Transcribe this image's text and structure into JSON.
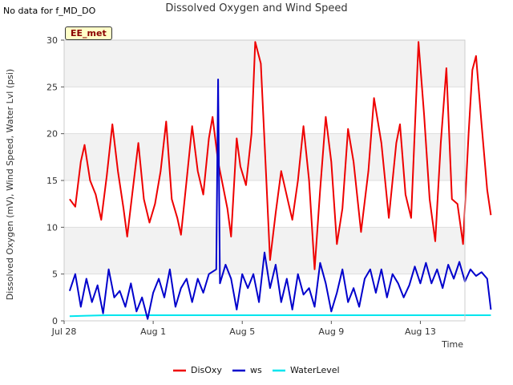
{
  "header": {
    "no_data_note": "No data for f_MD_DO",
    "tag": "EE_met"
  },
  "chart_data": {
    "type": "line",
    "title": "Dissolved Oxygen and Wind Speed",
    "xlabel": "Time",
    "ylabel": "Dissolved Oxygen (mV), Wind Speed, Water Lvl (psi)",
    "xlim": [
      "2024-07-28",
      "2024-08-15"
    ],
    "ylim": [
      0,
      30
    ],
    "xticks": [
      {
        "date": "2024-07-28",
        "label": "Jul 28"
      },
      {
        "date": "2024-08-01",
        "label": "Aug 1"
      },
      {
        "date": "2024-08-05",
        "label": "Aug 5"
      },
      {
        "date": "2024-08-09",
        "label": "Aug 9"
      },
      {
        "date": "2024-08-13",
        "label": "Aug 13"
      }
    ],
    "yticks": [
      0,
      5,
      10,
      15,
      20,
      25,
      30
    ],
    "grid": true,
    "legend_position": "bottom",
    "series": [
      {
        "name": "DisOxy",
        "color": "#ee0000",
        "points": [
          [
            "2024-07-28 06:00",
            13.0
          ],
          [
            "2024-07-28 12:00",
            12.2
          ],
          [
            "2024-07-28 18:00",
            17.0
          ],
          [
            "2024-07-28 22:00",
            18.8
          ],
          [
            "2024-07-29 04:00",
            15.0
          ],
          [
            "2024-07-29 10:00",
            13.5
          ],
          [
            "2024-07-29 16:00",
            10.8
          ],
          [
            "2024-07-29 22:00",
            15.5
          ],
          [
            "2024-07-30 04:00",
            21.0
          ],
          [
            "2024-07-30 10:00",
            16.0
          ],
          [
            "2024-07-30 16:00",
            12.0
          ],
          [
            "2024-07-30 20:00",
            9.0
          ],
          [
            "2024-07-31 02:00",
            14.0
          ],
          [
            "2024-07-31 08:00",
            19.0
          ],
          [
            "2024-07-31 14:00",
            13.0
          ],
          [
            "2024-07-31 20:00",
            10.5
          ],
          [
            "2024-08-01 02:00",
            12.5
          ],
          [
            "2024-08-01 08:00",
            16.0
          ],
          [
            "2024-08-01 14:00",
            21.3
          ],
          [
            "2024-08-01 20:00",
            13.0
          ],
          [
            "2024-08-02 02:00",
            11.0
          ],
          [
            "2024-08-02 06:00",
            9.2
          ],
          [
            "2024-08-02 12:00",
            15.0
          ],
          [
            "2024-08-02 18:00",
            20.8
          ],
          [
            "2024-08-03 00:00",
            16.0
          ],
          [
            "2024-08-03 06:00",
            13.5
          ],
          [
            "2024-08-03 12:00",
            19.5
          ],
          [
            "2024-08-03 16:00",
            21.8
          ],
          [
            "2024-08-03 22:00",
            17.0
          ],
          [
            "2024-08-04 04:00",
            14.0
          ],
          [
            "2024-08-04 08:00",
            12.0
          ],
          [
            "2024-08-04 12:00",
            9.0
          ],
          [
            "2024-08-04 18:00",
            19.5
          ],
          [
            "2024-08-04 22:00",
            16.5
          ],
          [
            "2024-08-05 04:00",
            14.5
          ],
          [
            "2024-08-05 10:00",
            20.0
          ],
          [
            "2024-08-05 14:00",
            29.8
          ],
          [
            "2024-08-05 20:00",
            27.5
          ],
          [
            "2024-08-06 02:00",
            15.0
          ],
          [
            "2024-08-06 06:00",
            6.5
          ],
          [
            "2024-08-06 12:00",
            11.5
          ],
          [
            "2024-08-06 18:00",
            16.0
          ],
          [
            "2024-08-07 02:00",
            12.5
          ],
          [
            "2024-08-07 06:00",
            10.8
          ],
          [
            "2024-08-07 12:00",
            15.0
          ],
          [
            "2024-08-07 18:00",
            20.8
          ],
          [
            "2024-08-08 00:00",
            15.0
          ],
          [
            "2024-08-08 06:00",
            5.5
          ],
          [
            "2024-08-08 12:00",
            14.0
          ],
          [
            "2024-08-08 18:00",
            21.8
          ],
          [
            "2024-08-09 00:00",
            17.0
          ],
          [
            "2024-08-09 06:00",
            8.2
          ],
          [
            "2024-08-09 12:00",
            12.0
          ],
          [
            "2024-08-09 18:00",
            20.5
          ],
          [
            "2024-08-10 00:00",
            17.0
          ],
          [
            "2024-08-10 08:00",
            9.5
          ],
          [
            "2024-08-10 16:00",
            16.0
          ],
          [
            "2024-08-10 22:00",
            23.8
          ],
          [
            "2024-08-11 06:00",
            19.0
          ],
          [
            "2024-08-11 14:00",
            11.0
          ],
          [
            "2024-08-11 22:00",
            19.0
          ],
          [
            "2024-08-12 02:00",
            21.0
          ],
          [
            "2024-08-12 08:00",
            13.5
          ],
          [
            "2024-08-12 14:00",
            11.0
          ],
          [
            "2024-08-12 22:00",
            29.8
          ],
          [
            "2024-08-13 04:00",
            22.0
          ],
          [
            "2024-08-13 10:00",
            13.0
          ],
          [
            "2024-08-13 16:00",
            8.5
          ],
          [
            "2024-08-13 22:00",
            19.0
          ],
          [
            "2024-08-14 04:00",
            27.0
          ],
          [
            "2024-08-14 10:00",
            13.0
          ],
          [
            "2024-08-14 16:00",
            12.5
          ],
          [
            "2024-08-14 22:00",
            8.2
          ],
          [
            "2024-08-15 04:00",
            20.0
          ],
          [
            "2024-08-15 08:00",
            26.8
          ],
          [
            "2024-08-15 12:00",
            28.3
          ],
          [
            "2024-08-15 18:00",
            21.0
          ],
          [
            "2024-08-16 00:00",
            14.0
          ],
          [
            "2024-08-16 04:00",
            11.3
          ]
        ]
      },
      {
        "name": "ws",
        "color": "#0000cc",
        "points": [
          [
            "2024-07-28 06:00",
            3.2
          ],
          [
            "2024-07-28 12:00",
            5.0
          ],
          [
            "2024-07-28 18:00",
            1.5
          ],
          [
            "2024-07-29 00:00",
            4.5
          ],
          [
            "2024-07-29 06:00",
            2.0
          ],
          [
            "2024-07-29 12:00",
            3.8
          ],
          [
            "2024-07-29 18:00",
            0.8
          ],
          [
            "2024-07-30 00:00",
            5.5
          ],
          [
            "2024-07-30 06:00",
            2.5
          ],
          [
            "2024-07-30 12:00",
            3.2
          ],
          [
            "2024-07-30 18:00",
            1.5
          ],
          [
            "2024-07-31 00:00",
            4.0
          ],
          [
            "2024-07-31 06:00",
            1.0
          ],
          [
            "2024-07-31 12:00",
            2.5
          ],
          [
            "2024-07-31 18:00",
            0.2
          ],
          [
            "2024-08-01 00:00",
            3.0
          ],
          [
            "2024-08-01 06:00",
            4.5
          ],
          [
            "2024-08-01 12:00",
            2.5
          ],
          [
            "2024-08-01 18:00",
            5.5
          ],
          [
            "2024-08-02 00:00",
            1.5
          ],
          [
            "2024-08-02 06:00",
            3.5
          ],
          [
            "2024-08-02 12:00",
            4.5
          ],
          [
            "2024-08-02 18:00",
            2.0
          ],
          [
            "2024-08-03 00:00",
            4.5
          ],
          [
            "2024-08-03 06:00",
            3.0
          ],
          [
            "2024-08-03 12:00",
            5.0
          ],
          [
            "2024-08-03 20:00",
            5.5
          ],
          [
            "2024-08-03 22:00",
            25.8
          ],
          [
            "2024-08-04 00:00",
            4.0
          ],
          [
            "2024-08-04 06:00",
            6.0
          ],
          [
            "2024-08-04 12:00",
            4.5
          ],
          [
            "2024-08-04 18:00",
            1.2
          ],
          [
            "2024-08-05 00:00",
            5.0
          ],
          [
            "2024-08-05 06:00",
            3.5
          ],
          [
            "2024-08-05 12:00",
            5.0
          ],
          [
            "2024-08-05 18:00",
            2.0
          ],
          [
            "2024-08-06 00:00",
            7.3
          ],
          [
            "2024-08-06 06:00",
            3.5
          ],
          [
            "2024-08-06 12:00",
            6.0
          ],
          [
            "2024-08-06 18:00",
            2.0
          ],
          [
            "2024-08-07 00:00",
            4.5
          ],
          [
            "2024-08-07 06:00",
            1.2
          ],
          [
            "2024-08-07 12:00",
            5.0
          ],
          [
            "2024-08-07 18:00",
            2.8
          ],
          [
            "2024-08-08 00:00",
            3.5
          ],
          [
            "2024-08-08 06:00",
            1.5
          ],
          [
            "2024-08-08 12:00",
            6.2
          ],
          [
            "2024-08-08 18:00",
            4.0
          ],
          [
            "2024-08-09 00:00",
            1.0
          ],
          [
            "2024-08-09 06:00",
            3.0
          ],
          [
            "2024-08-09 12:00",
            5.5
          ],
          [
            "2024-08-09 18:00",
            2.0
          ],
          [
            "2024-08-10 00:00",
            3.5
          ],
          [
            "2024-08-10 06:00",
            1.5
          ],
          [
            "2024-08-10 12:00",
            4.5
          ],
          [
            "2024-08-10 18:00",
            5.5
          ],
          [
            "2024-08-11 00:00",
            3.0
          ],
          [
            "2024-08-11 06:00",
            5.5
          ],
          [
            "2024-08-11 12:00",
            2.5
          ],
          [
            "2024-08-11 18:00",
            5.0
          ],
          [
            "2024-08-12 00:00",
            4.0
          ],
          [
            "2024-08-12 06:00",
            2.5
          ],
          [
            "2024-08-12 12:00",
            3.8
          ],
          [
            "2024-08-12 18:00",
            5.8
          ],
          [
            "2024-08-13 00:00",
            4.0
          ],
          [
            "2024-08-13 06:00",
            6.2
          ],
          [
            "2024-08-13 12:00",
            4.0
          ],
          [
            "2024-08-13 18:00",
            5.5
          ],
          [
            "2024-08-14 00:00",
            3.5
          ],
          [
            "2024-08-14 06:00",
            6.0
          ],
          [
            "2024-08-14 12:00",
            4.5
          ],
          [
            "2024-08-14 18:00",
            6.3
          ],
          [
            "2024-08-15 00:00",
            4.2
          ],
          [
            "2024-08-15 06:00",
            5.5
          ],
          [
            "2024-08-15 12:00",
            4.8
          ],
          [
            "2024-08-15 18:00",
            5.2
          ],
          [
            "2024-08-16 00:00",
            4.5
          ],
          [
            "2024-08-16 04:00",
            1.2
          ]
        ]
      },
      {
        "name": "WaterLevel",
        "color": "#00e5ee",
        "points": [
          [
            "2024-07-28 06:00",
            0.5
          ],
          [
            "2024-07-29 00:00",
            0.55
          ],
          [
            "2024-07-30 00:00",
            0.6
          ],
          [
            "2024-08-03 00:00",
            0.6
          ],
          [
            "2024-08-08 00:00",
            0.6
          ],
          [
            "2024-08-12 00:00",
            0.6
          ],
          [
            "2024-08-16 04:00",
            0.6
          ]
        ]
      }
    ]
  }
}
